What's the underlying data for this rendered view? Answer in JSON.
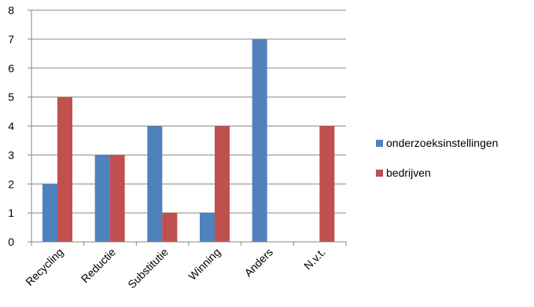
{
  "chart_data": {
    "type": "bar",
    "categories": [
      "Recycling",
      "Reductie",
      "Substitutie",
      "Winning",
      "Anders",
      "N.v.t."
    ],
    "series": [
      {
        "name": "onderzoeksinstellingen",
        "values": [
          2,
          3,
          4,
          1,
          7,
          0
        ],
        "color": "#4F81BD"
      },
      {
        "name": "bedrijven",
        "values": [
          5,
          3,
          1,
          4,
          0,
          4
        ],
        "color": "#C0504D"
      }
    ],
    "title": "",
    "xlabel": "",
    "ylabel": "",
    "ylim": [
      0,
      8
    ],
    "yticks": [
      0,
      1,
      2,
      3,
      4,
      5,
      6,
      7,
      8
    ],
    "grid": true,
    "legend_position": "right"
  }
}
